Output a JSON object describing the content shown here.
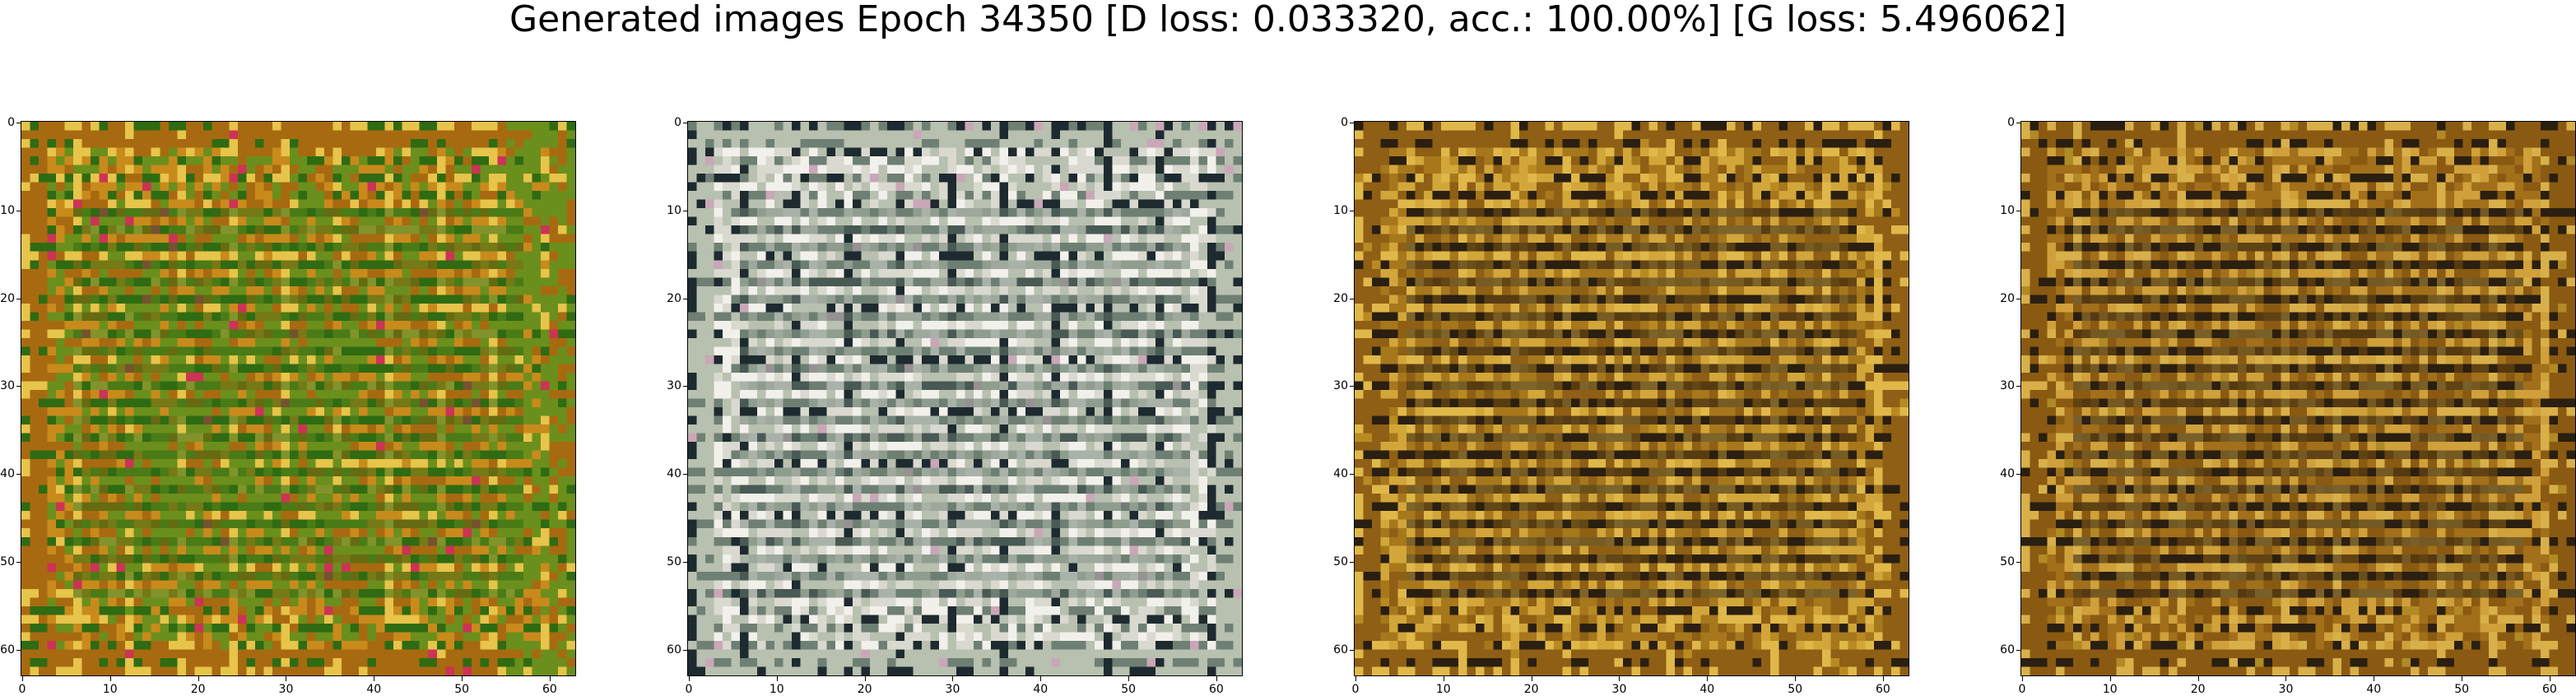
{
  "title": "Generated images Epoch 34350 [D loss: 0.033320, acc.: 100.00%] [G loss: 5.496062]",
  "panels": [
    {
      "name": "generated-image-1",
      "x_ticks": [
        "0",
        "10",
        "20",
        "30",
        "40",
        "50",
        "60"
      ],
      "y_ticks": [
        "0",
        "10",
        "20",
        "30",
        "40",
        "50",
        "60"
      ]
    },
    {
      "name": "generated-image-2",
      "x_ticks": [
        "0",
        "10",
        "20",
        "30",
        "40",
        "50",
        "60"
      ],
      "y_ticks": [
        "0",
        "10",
        "20",
        "30",
        "40",
        "50",
        "60"
      ]
    },
    {
      "name": "generated-image-3",
      "x_ticks": [
        "0",
        "10",
        "20",
        "30",
        "40",
        "50",
        "60"
      ],
      "y_ticks": [
        "0",
        "10",
        "20",
        "30",
        "40",
        "50",
        "60"
      ]
    },
    {
      "name": "generated-image-4",
      "x_ticks": [
        "0",
        "10",
        "20",
        "30",
        "40",
        "50",
        "60"
      ],
      "y_ticks": [
        "0",
        "10",
        "20",
        "30",
        "40",
        "50",
        "60"
      ]
    }
  ],
  "colors": {
    "panel1": [
      "#c98a1c",
      "#a86a10",
      "#6b8f1c",
      "#2f6b12",
      "#e7c44a",
      "#cc3355",
      "#3a2a10"
    ],
    "panel2": [
      "#d9d9cf",
      "#b8c0b0",
      "#f2f0ea",
      "#6e7f73",
      "#1d2a2f",
      "#c9a7b7",
      "#9bb2a2"
    ],
    "panel3": [
      "#a7771c",
      "#8e5f14",
      "#d3a63a",
      "#2a1f10",
      "#e0b84a",
      "#b98a22",
      "#d35a78"
    ],
    "panel4": [
      "#a26f1a",
      "#8a5a12",
      "#d0a03a",
      "#2a1f10",
      "#d8b04a",
      "#b08a24",
      "#cc6a88"
    ]
  }
}
